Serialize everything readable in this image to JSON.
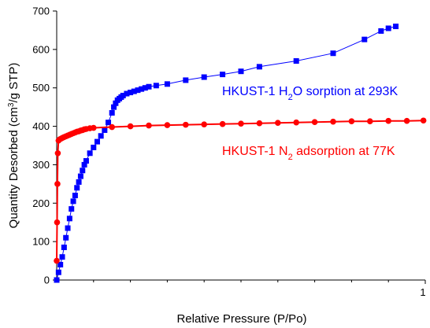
{
  "chart_data": {
    "type": "scatter",
    "title": "",
    "xlabel": "Relative Pressure (P/Po)",
    "ylabel_parts": [
      "Quantity Desorbed (cm",
      "3",
      "/g STP)"
    ],
    "xlim": [
      0,
      1
    ],
    "ylim": [
      0,
      700
    ],
    "x_tick_labels": [
      {
        "value": 1,
        "label": "1"
      }
    ],
    "y_ticks": [
      0,
      100,
      200,
      300,
      400,
      500,
      600,
      700
    ],
    "grid": false,
    "series": [
      {
        "color": "#0000ff",
        "marker": "square",
        "x": [
          0.0,
          0.005,
          0.01,
          0.015,
          0.02,
          0.025,
          0.03,
          0.035,
          0.04,
          0.045,
          0.05,
          0.055,
          0.06,
          0.065,
          0.07,
          0.075,
          0.08,
          0.09,
          0.1,
          0.11,
          0.12,
          0.13,
          0.14,
          0.15,
          0.155,
          0.16,
          0.165,
          0.17,
          0.175,
          0.18,
          0.19,
          0.2,
          0.21,
          0.22,
          0.23,
          0.24,
          0.25,
          0.27,
          0.3,
          0.35,
          0.4,
          0.45,
          0.5,
          0.55,
          0.65,
          0.75,
          0.835,
          0.88,
          0.9,
          0.92
        ],
        "y": [
          0,
          20,
          40,
          60,
          85,
          110,
          135,
          160,
          185,
          205,
          220,
          240,
          255,
          270,
          285,
          300,
          310,
          330,
          345,
          360,
          375,
          390,
          410,
          435,
          450,
          460,
          468,
          472,
          476,
          480,
          485,
          488,
          491,
          494,
          497,
          500,
          503,
          506,
          510,
          520,
          528,
          535,
          543,
          555,
          570,
          590,
          626,
          648,
          655,
          660
        ],
        "label_parts": [
          "HKUST-1 H",
          "2",
          "O sorption at 293K"
        ]
      },
      {
        "color": "#ff0000",
        "marker": "circle",
        "x": [
          0.0,
          0.001,
          0.002,
          0.003,
          0.005,
          0.008,
          0.012,
          0.016,
          0.02,
          0.025,
          0.03,
          0.035,
          0.04,
          0.045,
          0.05,
          0.055,
          0.06,
          0.065,
          0.07,
          0.075,
          0.08,
          0.09,
          0.1,
          0.15,
          0.2,
          0.25,
          0.3,
          0.35,
          0.4,
          0.45,
          0.5,
          0.55,
          0.6,
          0.65,
          0.7,
          0.75,
          0.8,
          0.85,
          0.9,
          0.95,
          0.995
        ],
        "y": [
          50,
          150,
          250,
          330,
          363,
          366,
          368,
          370,
          372,
          374,
          376,
          378,
          380,
          382,
          384,
          386,
          387,
          389,
          390,
          392,
          393,
          395,
          396,
          398,
          400,
          402,
          403,
          404,
          405,
          406,
          407,
          408,
          409,
          410,
          411,
          412,
          413,
          413,
          414,
          414,
          415
        ],
        "label_parts": [
          "HKUST-1 N",
          "2",
          " adsorption at 77K"
        ]
      }
    ]
  }
}
